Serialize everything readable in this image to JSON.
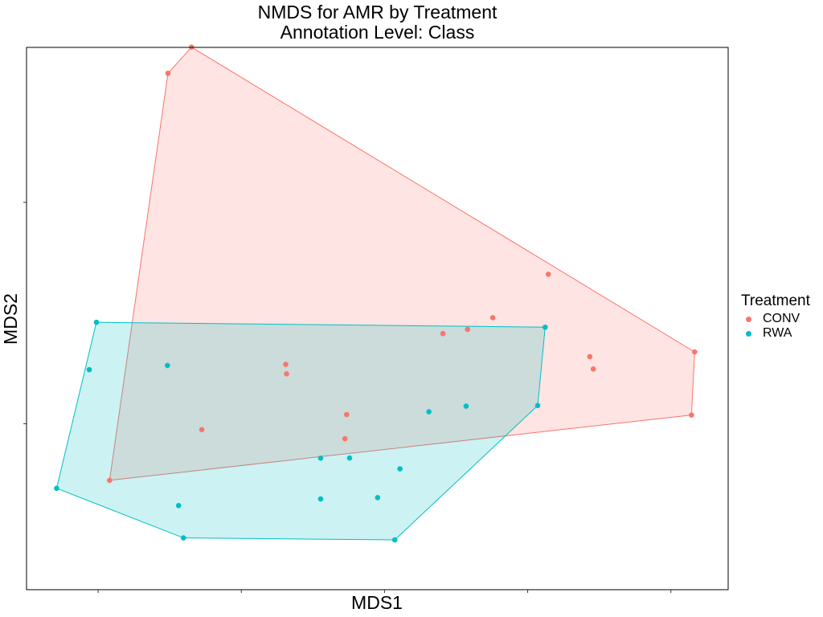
{
  "chart_data": {
    "type": "scatter",
    "title": "NMDS for AMR by Treatment",
    "subtitle": "Annotation Level: Class",
    "xlabel": "MDS1",
    "ylabel": "MDS2",
    "xlim": [
      -0.25,
      2.2
    ],
    "ylim": [
      -0.25,
      2.2
    ],
    "hulls": true,
    "legend": {
      "title": "Treatment",
      "position": "right"
    },
    "series": [
      {
        "name": "CONV",
        "color": "#F8766D",
        "fill": "#F8766D",
        "points": [
          {
            "x": 0.244,
            "y": 2.083
          },
          {
            "x": 0.326,
            "y": 2.201
          },
          {
            "x": 1.572,
            "y": 1.175
          },
          {
            "x": 1.378,
            "y": 0.979
          },
          {
            "x": 2.083,
            "y": 0.824
          },
          {
            "x": 2.072,
            "y": 0.539
          },
          {
            "x": 1.717,
            "y": 0.803
          },
          {
            "x": 1.729,
            "y": 0.747
          },
          {
            "x": 1.29,
            "y": 0.926
          },
          {
            "x": 1.204,
            "y": 0.907
          },
          {
            "x": 0.655,
            "y": 0.768
          },
          {
            "x": 0.658,
            "y": 0.725
          },
          {
            "x": 0.868,
            "y": 0.541
          },
          {
            "x": 0.862,
            "y": 0.432
          },
          {
            "x": 0.362,
            "y": 0.473
          },
          {
            "x": 0.04,
            "y": 0.244
          }
        ]
      },
      {
        "name": "RWA",
        "color": "#00BFC4",
        "fill": "#00BFC4",
        "points": [
          {
            "x": -0.006,
            "y": 0.958
          },
          {
            "x": 1.561,
            "y": 0.936
          },
          {
            "x": 1.535,
            "y": 0.582
          },
          {
            "x": 1.036,
            "y": -0.025
          },
          {
            "x": 0.298,
            "y": -0.016
          },
          {
            "x": -0.145,
            "y": 0.208
          },
          {
            "x": -0.031,
            "y": 0.744
          },
          {
            "x": 0.242,
            "y": 0.763
          },
          {
            "x": 1.155,
            "y": 0.554
          },
          {
            "x": 1.285,
            "y": 0.579
          },
          {
            "x": 0.777,
            "y": 0.344
          },
          {
            "x": 0.878,
            "y": 0.345
          },
          {
            "x": 1.054,
            "y": 0.296
          },
          {
            "x": 0.777,
            "y": 0.16
          },
          {
            "x": 0.976,
            "y": 0.166
          },
          {
            "x": 0.281,
            "y": 0.13
          }
        ]
      }
    ]
  }
}
